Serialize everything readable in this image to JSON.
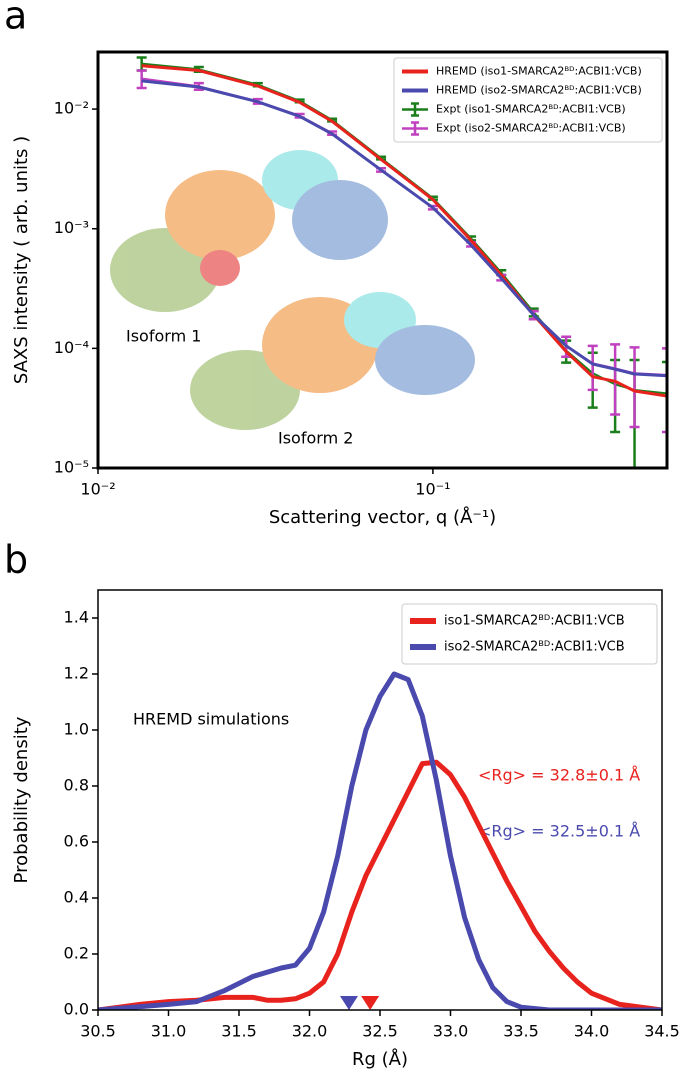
{
  "chart_data": [
    {
      "type": "line",
      "panel_label": "a",
      "xlabel": "Scattering vector, q (Å⁻¹)",
      "ylabel": "SAXS intensity ( arb. units )",
      "xscale": "log",
      "yscale": "log",
      "xlim": [
        0.01,
        0.5
      ],
      "ylim": [
        1e-05,
        0.03
      ],
      "xticks": [
        {
          "value": 0.01,
          "label": "10⁻²"
        },
        {
          "value": 0.1,
          "label": "10⁻¹"
        }
      ],
      "yticks": [
        {
          "value": 1e-05,
          "label": "10⁻⁵"
        },
        {
          "value": 0.0001,
          "label": "10⁻⁴"
        },
        {
          "value": 0.001,
          "label": "10⁻³"
        },
        {
          "value": 0.01,
          "label": "10⁻²"
        }
      ],
      "legend": "upper right",
      "annotations": [
        "Isoform 1",
        "Isoform 2"
      ],
      "series": [
        {
          "name": "Expt (iso1-SMARCA2ᴮᴰ:ACBI1:VCB)",
          "color": "#1a7f1a",
          "x": [
            0.0135,
            0.02,
            0.03,
            0.04,
            0.05,
            0.07,
            0.1,
            0.13,
            0.16,
            0.2,
            0.25,
            0.3,
            0.35,
            0.4,
            0.5
          ],
          "values": [
            0.024,
            0.0215,
            0.016,
            0.0117,
            0.0081,
            0.0039,
            0.0018,
            0.00083,
            0.00043,
            0.0002,
            9.6e-05,
            6.2e-05,
            5e-05,
            4.5e-05,
            4.2e-05
          ],
          "errors": [
            0.003,
            0.001,
            0.0005,
            0.0003,
            0.0002,
            0.0001,
            5e-05,
            3e-05,
            2e-05,
            1.5e-05,
            2e-05,
            3e-05,
            3e-05,
            3.5e-05,
            3.5e-05
          ]
        },
        {
          "name": "Expt (iso2-SMARCA2ᴮᴰ:ACBI1:VCB)",
          "color": "#c040c0",
          "x": [
            0.0135,
            0.02,
            0.03,
            0.04,
            0.05,
            0.07,
            0.1,
            0.13,
            0.16,
            0.2,
            0.25,
            0.3,
            0.35,
            0.4,
            0.5
          ],
          "values": [
            0.018,
            0.0155,
            0.0116,
            0.0088,
            0.0063,
            0.0031,
            0.0015,
            0.00074,
            0.00039,
            0.00019,
            0.000105,
            7.5e-05,
            6.8e-05,
            6.2e-05,
            6e-05
          ],
          "errors": [
            0.003,
            0.001,
            0.0005,
            0.0003,
            0.0002,
            0.0001,
            5e-05,
            3e-05,
            2e-05,
            1.5e-05,
            2e-05,
            3e-05,
            4e-05,
            4e-05,
            4e-05
          ]
        },
        {
          "name": "HREMD (iso1-SMARCA2ᴮᴰ:ACBI1:VCB)",
          "color": "#e8231e",
          "x": [
            0.0135,
            0.02,
            0.03,
            0.04,
            0.05,
            0.07,
            0.1,
            0.13,
            0.16,
            0.2,
            0.25,
            0.3,
            0.35,
            0.4,
            0.5
          ],
          "values": [
            0.023,
            0.021,
            0.0156,
            0.0114,
            0.0079,
            0.0038,
            0.00175,
            0.0008,
            0.00041,
            0.00019,
            9.4e-05,
            5.8e-05,
            5.3e-05,
            4.4e-05,
            4e-05
          ]
        },
        {
          "name": "HREMD (iso2-SMARCA2ᴮᴰ:ACBI1:VCB)",
          "color": "#4a4aae",
          "x": [
            0.0135,
            0.02,
            0.03,
            0.04,
            0.05,
            0.07,
            0.1,
            0.13,
            0.16,
            0.2,
            0.25,
            0.3,
            0.35,
            0.4,
            0.5
          ],
          "values": [
            0.0172,
            0.0153,
            0.0115,
            0.0087,
            0.0062,
            0.0031,
            0.0015,
            0.00073,
            0.000385,
            0.00019,
            0.000105,
            7.4e-05,
            6.7e-05,
            6.1e-05,
            5.9e-05
          ]
        }
      ]
    },
    {
      "type": "line",
      "panel_label": "b",
      "xlabel": "Rg (Å)",
      "ylabel": "Probability density",
      "xlim": [
        30.5,
        34.5
      ],
      "ylim": [
        0,
        1.5
      ],
      "xticks": [
        30.5,
        {
          "value": 31,
          "label": "31.0"
        },
        31.5,
        {
          "value": 32,
          "label": "32.0"
        },
        32.5,
        {
          "value": 33,
          "label": "33.0"
        },
        33.5,
        {
          "value": 34,
          "label": "34.0"
        },
        34.5
      ],
      "yticks": [
        {
          "value": 0,
          "label": "0.0"
        },
        0.2,
        0.4,
        0.6,
        0.8,
        {
          "value": 1,
          "label": "1.0"
        },
        1.2,
        1.4
      ],
      "legend": "upper right",
      "annotations": [
        "HREMD simulations",
        "<Rg> = 32.8±0.1 Å",
        "<Rg> = 32.5±0.1 Å"
      ],
      "series": [
        {
          "name": "iso1-SMARCA2ᴮᴰ:ACBI1:VCB",
          "color": "#e8231e",
          "marker": 32.43,
          "x": [
            30.5,
            30.8,
            31.0,
            31.2,
            31.4,
            31.6,
            31.7,
            31.8,
            31.9,
            32.0,
            32.1,
            32.2,
            32.3,
            32.4,
            32.5,
            32.6,
            32.7,
            32.8,
            32.9,
            33.0,
            33.1,
            33.2,
            33.3,
            33.4,
            33.5,
            33.6,
            33.7,
            33.8,
            33.9,
            34.0,
            34.2,
            34.5
          ],
          "values": [
            0,
            0.02,
            0.03,
            0.035,
            0.045,
            0.045,
            0.035,
            0.035,
            0.04,
            0.06,
            0.1,
            0.2,
            0.35,
            0.48,
            0.58,
            0.68,
            0.78,
            0.88,
            0.885,
            0.84,
            0.76,
            0.66,
            0.56,
            0.46,
            0.37,
            0.28,
            0.21,
            0.15,
            0.1,
            0.06,
            0.02,
            0
          ]
        },
        {
          "name": "iso2-SMARCA2ᴮᴰ:ACBI1:VCB",
          "color": "#4a4aae",
          "marker": 32.28,
          "x": [
            30.5,
            31.0,
            31.2,
            31.4,
            31.6,
            31.8,
            31.9,
            32.0,
            32.1,
            32.2,
            32.3,
            32.4,
            32.5,
            32.6,
            32.7,
            32.8,
            32.9,
            33.0,
            33.1,
            33.2,
            33.3,
            33.4,
            33.5,
            33.7,
            34.5
          ],
          "values": [
            0,
            0.02,
            0.03,
            0.07,
            0.12,
            0.15,
            0.16,
            0.22,
            0.35,
            0.55,
            0.8,
            1.0,
            1.12,
            1.2,
            1.18,
            1.05,
            0.82,
            0.55,
            0.33,
            0.18,
            0.08,
            0.03,
            0.01,
            0,
            0
          ]
        }
      ]
    }
  ]
}
